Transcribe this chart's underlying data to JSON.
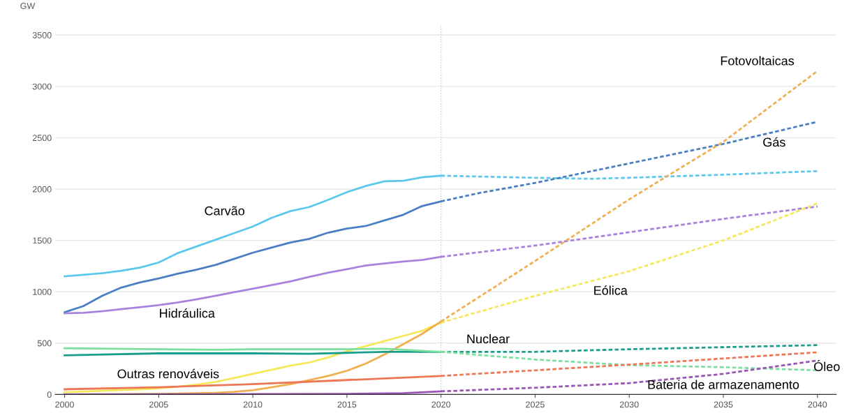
{
  "chart_data": {
    "type": "line",
    "ylabel": "GW",
    "xlim": [
      1999.5,
      2041
    ],
    "xticks": [
      2000,
      2005,
      2010,
      2015,
      2020,
      2025,
      2030,
      2035,
      2040
    ],
    "ylim": [
      0,
      3600
    ],
    "yticks": [
      0,
      500,
      1000,
      1500,
      2000,
      2500,
      3000,
      3500
    ],
    "grid": "y",
    "legend": false,
    "marker": "none",
    "ref_lines": [
      {
        "axis": "x",
        "value": 2020,
        "color": "#c8c8c8",
        "line_style": "dotted"
      }
    ],
    "series": [
      {
        "name": "Carvão",
        "color": "#5bc8ec",
        "line_style": "solid",
        "x": [
          2000,
          2001,
          2002,
          2003,
          2004,
          2005,
          2006,
          2007,
          2008,
          2009,
          2010,
          2011,
          2012,
          2013,
          2014,
          2015,
          2016,
          2017,
          2018,
          2019,
          2020
        ],
        "values": [
          1150,
          1165,
          1180,
          1205,
          1235,
          1285,
          1375,
          1440,
          1505,
          1570,
          1635,
          1720,
          1785,
          1825,
          1895,
          1970,
          2030,
          2075,
          2080,
          2115,
          2130
        ]
      },
      {
        "color": "#5bc8ec",
        "line_style": "dashed",
        "x": [
          2020,
          2025,
          2028,
          2030,
          2035,
          2040
        ],
        "values": [
          2130,
          2110,
          2100,
          2110,
          2140,
          2175
        ]
      },
      {
        "color": "#4a7fc4",
        "line_style": "solid",
        "x": [
          2000,
          2001,
          2002,
          2003,
          2004,
          2005,
          2006,
          2007,
          2008,
          2009,
          2010,
          2011,
          2012,
          2013,
          2014,
          2015,
          2016,
          2017,
          2018,
          2019,
          2020
        ],
        "values": [
          800,
          860,
          960,
          1040,
          1090,
          1130,
          1175,
          1215,
          1260,
          1320,
          1380,
          1430,
          1480,
          1515,
          1575,
          1615,
          1640,
          1695,
          1750,
          1835,
          1880
        ]
      },
      {
        "name": "Gás",
        "color": "#4a7fc4",
        "line_style": "dashed",
        "x": [
          2020,
          2022,
          2025,
          2030,
          2035,
          2040
        ],
        "values": [
          1880,
          1960,
          2060,
          2250,
          2440,
          2655
        ]
      },
      {
        "name": "Hidráulica",
        "color": "#a982e0",
        "line_style": "solid",
        "x": [
          2000,
          2001,
          2002,
          2003,
          2004,
          2005,
          2006,
          2007,
          2008,
          2009,
          2010,
          2011,
          2012,
          2013,
          2014,
          2015,
          2016,
          2017,
          2018,
          2019,
          2020
        ],
        "values": [
          790,
          795,
          810,
          830,
          850,
          870,
          895,
          925,
          960,
          995,
          1030,
          1065,
          1100,
          1145,
          1185,
          1220,
          1255,
          1275,
          1295,
          1310,
          1340
        ]
      },
      {
        "color": "#a982e0",
        "line_style": "dashed",
        "x": [
          2020,
          2025,
          2030,
          2035,
          2040
        ],
        "values": [
          1340,
          1450,
          1580,
          1710,
          1830
        ]
      },
      {
        "color": "#f5e85a",
        "line_style": "solid",
        "x": [
          2000,
          2002,
          2004,
          2005,
          2006,
          2007,
          2008,
          2009,
          2010,
          2011,
          2012,
          2013,
          2014,
          2015,
          2016,
          2017,
          2018,
          2019,
          2020
        ],
        "values": [
          20,
          35,
          50,
          60,
          75,
          95,
          120,
          160,
          200,
          240,
          280,
          310,
          360,
          420,
          470,
          520,
          570,
          620,
          700
        ]
      },
      {
        "name": "Eólica",
        "color": "#f5e85a",
        "line_style": "dashed",
        "x": [
          2020,
          2025,
          2030,
          2035,
          2040
        ],
        "values": [
          700,
          960,
          1200,
          1500,
          1860
        ]
      },
      {
        "color": "#f0b050",
        "line_style": "solid",
        "x": [
          2000,
          2005,
          2008,
          2009,
          2010,
          2011,
          2012,
          2013,
          2014,
          2015,
          2016,
          2017,
          2018,
          2019,
          2020
        ],
        "values": [
          0,
          5,
          15,
          25,
          40,
          70,
          100,
          140,
          180,
          230,
          300,
          390,
          490,
          590,
          710
        ]
      },
      {
        "name": "Fotovoltaicas",
        "color": "#f0b050",
        "line_style": "dashed",
        "x": [
          2020,
          2025,
          2030,
          2035,
          2040
        ],
        "values": [
          710,
          1300,
          1900,
          2460,
          3150
        ]
      },
      {
        "color": "#1a9e8c",
        "line_style": "solid",
        "x": [
          2000,
          2005,
          2010,
          2013,
          2015,
          2017,
          2020
        ],
        "values": [
          380,
          400,
          400,
          395,
          405,
          415,
          415
        ]
      },
      {
        "name": "Nuclear",
        "color": "#1a9e8c",
        "line_style": "dashed",
        "x": [
          2020,
          2025,
          2030,
          2035,
          2040
        ],
        "values": [
          415,
          415,
          440,
          460,
          480
        ]
      },
      {
        "color": "#7de0a0",
        "line_style": "solid",
        "x": [
          2000,
          2005,
          2008,
          2010,
          2015,
          2017,
          2018,
          2020
        ],
        "values": [
          450,
          440,
          435,
          440,
          440,
          445,
          435,
          415
        ]
      },
      {
        "name": "Óleo",
        "color": "#7de0a0",
        "line_style": "dashed",
        "x": [
          2020,
          2025,
          2030,
          2035,
          2040
        ],
        "values": [
          415,
          340,
          285,
          265,
          235
        ]
      },
      {
        "name": "Outras renováveis",
        "color": "#ee7755",
        "line_style": "solid",
        "x": [
          2000,
          2005,
          2010,
          2015,
          2020
        ],
        "values": [
          50,
          70,
          100,
          140,
          180
        ]
      },
      {
        "color": "#ee7755",
        "line_style": "dashed",
        "x": [
          2020,
          2025,
          2030,
          2035,
          2040
        ],
        "values": [
          180,
          235,
          290,
          350,
          410
        ]
      },
      {
        "color": "#9b55b5",
        "line_style": "solid",
        "x": [
          2000,
          2015,
          2018,
          2020
        ],
        "values": [
          0,
          5,
          12,
          30
        ]
      },
      {
        "name": "Bateria de armazenamento",
        "color": "#9b55b5",
        "line_style": "dashed",
        "x": [
          2020,
          2025,
          2030,
          2035,
          2040
        ],
        "values": [
          30,
          65,
          110,
          200,
          330
        ]
      }
    ]
  }
}
